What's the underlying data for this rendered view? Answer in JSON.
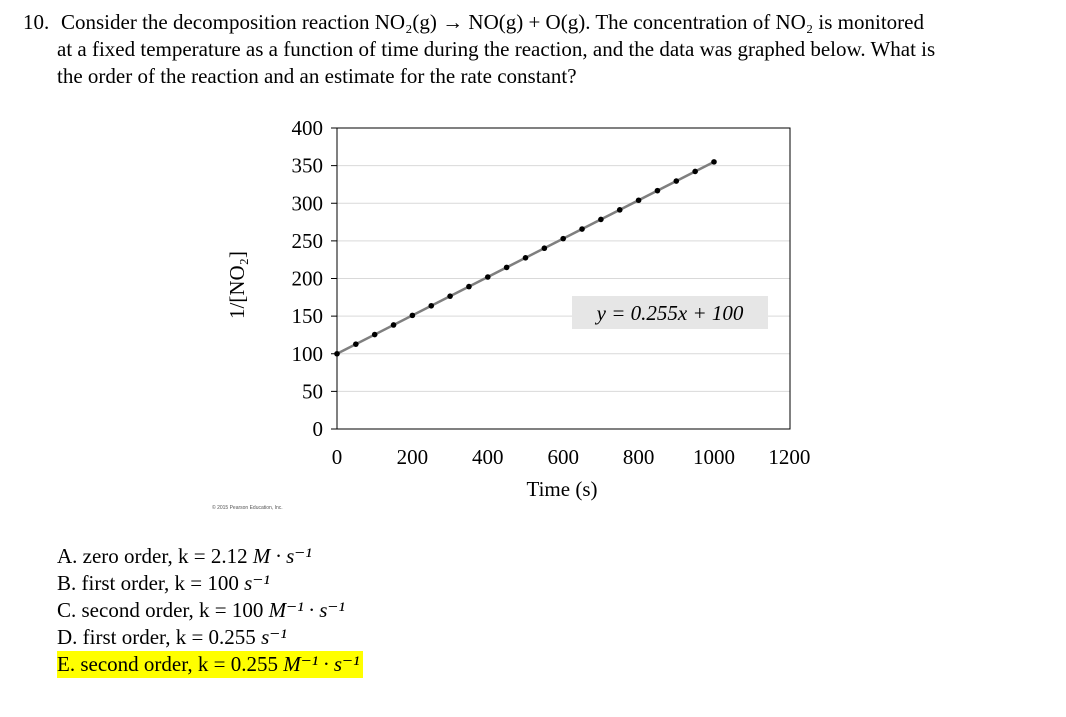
{
  "question": {
    "number": "10.",
    "line1": "Consider the decomposition reaction NO₂(g) → NO(g) + O(g). The concentration of NO₂ is monitored",
    "line2": "at a fixed temperature as a function of time during the reaction, and the data was graphed below. What is",
    "line3": "the order of the reaction and an estimate for the rate constant?"
  },
  "chart_data": {
    "type": "scatter",
    "title": "",
    "xlabel": "Time (s)",
    "ylabel": "1/[NO₂]",
    "xlim": [
      0,
      1200
    ],
    "ylim": [
      0,
      400
    ],
    "xticks": [
      0,
      200,
      400,
      600,
      800,
      1000,
      1200
    ],
    "yticks": [
      0,
      50,
      100,
      150,
      200,
      250,
      300,
      350,
      400
    ],
    "grid": true,
    "series": [
      {
        "x": [
          0,
          50,
          100,
          150,
          200,
          250,
          300,
          350,
          400,
          450,
          500,
          550,
          600,
          650,
          700,
          750,
          800,
          850,
          900,
          950,
          1000
        ],
        "y": [
          100,
          112.75,
          125.5,
          138.25,
          151,
          163.75,
          176.5,
          189.25,
          202,
          214.75,
          227.5,
          240.25,
          253,
          265.75,
          278.5,
          291.25,
          304,
          316.75,
          329.5,
          342.25,
          355
        ]
      }
    ],
    "fit_line": {
      "slope": 0.255,
      "intercept": 100,
      "x_range": [
        0,
        1000
      ]
    },
    "annotation": "y = 0.255x + 100",
    "copyright": "© 2015 Pearson Education, Inc."
  },
  "answers": [
    {
      "text": "A. zero order, k = 2.12 ",
      "unit": "M · s⁻¹"
    },
    {
      "text": "B. first order, k = 100 ",
      "unit": "s⁻¹"
    },
    {
      "text": "C. second order, k = 100 ",
      "unit": "M⁻¹ · s⁻¹"
    },
    {
      "text": "D. first order, k = 0.255 ",
      "unit": "s⁻¹"
    },
    {
      "text": "E. second order, k = 0.255 ",
      "unit": "M⁻¹ · s⁻¹",
      "highlighted": true
    }
  ],
  "colors": {
    "highlight": "#ffff00",
    "marker": "#000000",
    "fit_line": "#7f7f7f",
    "grid": "#d9d9d9",
    "annotation_box": "#e6e6e6"
  }
}
